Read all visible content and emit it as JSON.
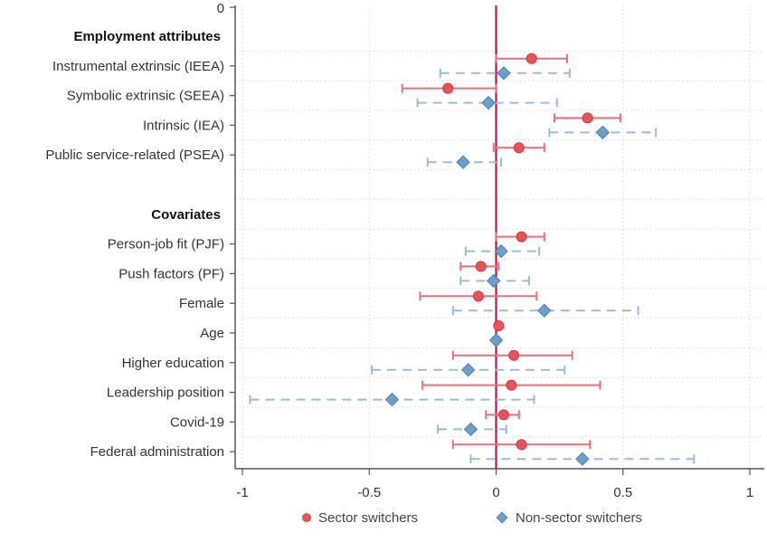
{
  "chart_data": {
    "type": "scatter",
    "subtype": "coefficient-plot",
    "title": "",
    "xlabel": "",
    "ylabel": "",
    "xlim": [
      -1,
      1
    ],
    "xticks": [
      -1,
      -0.5,
      0,
      0.5,
      1
    ],
    "xtick_labels": [
      "-1",
      "-0.5",
      "0",
      "0.5",
      "1"
    ],
    "reference_line": 0,
    "top_label": "0",
    "grid": true,
    "legend_position": "bottom",
    "colors": {
      "sector": "#e8535b",
      "non_sector": "#6b9fce",
      "refline": "#cc1144"
    },
    "rows": [
      {
        "kind": "header",
        "label": "Employment attributes"
      },
      {
        "kind": "var",
        "label": "Instrumental extrinsic (IEEA)"
      },
      {
        "kind": "var",
        "label": "Symbolic extrinsic (SEEA)"
      },
      {
        "kind": "var",
        "label": "Intrinsic (IEA)"
      },
      {
        "kind": "var",
        "label": "Public service-related (PSEA)"
      },
      {
        "kind": "blank",
        "label": ""
      },
      {
        "kind": "header",
        "label": "Covariates"
      },
      {
        "kind": "var",
        "label": "Person-job fit (PJF)"
      },
      {
        "kind": "var",
        "label": "Push factors (PF)"
      },
      {
        "kind": "var",
        "label": "Female"
      },
      {
        "kind": "var",
        "label": "Age"
      },
      {
        "kind": "var",
        "label": "Higher education"
      },
      {
        "kind": "var",
        "label": "Leadership position"
      },
      {
        "kind": "var",
        "label": "Covid-19"
      },
      {
        "kind": "var",
        "label": "Federal administration"
      }
    ],
    "series": [
      {
        "name": "Sector switchers",
        "marker": "circle",
        "line": "solid",
        "points": [
          {
            "var": "Instrumental extrinsic (IEEA)",
            "estimate": 0.14,
            "ci": [
              0.0,
              0.28
            ]
          },
          {
            "var": "Symbolic extrinsic (SEEA)",
            "estimate": -0.19,
            "ci": [
              -0.37,
              0.0
            ]
          },
          {
            "var": "Intrinsic (IEA)",
            "estimate": 0.36,
            "ci": [
              0.23,
              0.49
            ]
          },
          {
            "var": "Public service-related (PSEA)",
            "estimate": 0.09,
            "ci": [
              -0.01,
              0.19
            ]
          },
          {
            "var": "Person-job fit (PJF)",
            "estimate": 0.1,
            "ci": [
              0.0,
              0.19
            ]
          },
          {
            "var": "Push factors (PF)",
            "estimate": -0.06,
            "ci": [
              -0.14,
              0.01
            ]
          },
          {
            "var": "Female",
            "estimate": -0.07,
            "ci": [
              -0.3,
              0.16
            ]
          },
          {
            "var": "Age",
            "estimate": 0.01,
            "ci": [
              0.0,
              0.02
            ]
          },
          {
            "var": "Higher education",
            "estimate": 0.07,
            "ci": [
              -0.17,
              0.3
            ]
          },
          {
            "var": "Leadership position",
            "estimate": 0.06,
            "ci": [
              -0.29,
              0.41
            ]
          },
          {
            "var": "Covid-19",
            "estimate": 0.03,
            "ci": [
              -0.04,
              0.09
            ]
          },
          {
            "var": "Federal administration",
            "estimate": 0.1,
            "ci": [
              -0.17,
              0.37
            ]
          }
        ]
      },
      {
        "name": "Non-sector switchers",
        "marker": "diamond",
        "line": "dashed",
        "points": [
          {
            "var": "Instrumental extrinsic (IEEA)",
            "estimate": 0.03,
            "ci": [
              -0.22,
              0.29
            ]
          },
          {
            "var": "Symbolic extrinsic (SEEA)",
            "estimate": -0.03,
            "ci": [
              -0.31,
              0.24
            ]
          },
          {
            "var": "Intrinsic (IEA)",
            "estimate": 0.42,
            "ci": [
              0.21,
              0.63
            ]
          },
          {
            "var": "Public service-related (PSEA)",
            "estimate": -0.13,
            "ci": [
              -0.27,
              0.02
            ]
          },
          {
            "var": "Person-job fit (PJF)",
            "estimate": 0.02,
            "ci": [
              -0.12,
              0.17
            ]
          },
          {
            "var": "Push factors (PF)",
            "estimate": -0.01,
            "ci": [
              -0.14,
              0.13
            ]
          },
          {
            "var": "Female",
            "estimate": 0.19,
            "ci": [
              -0.17,
              0.56
            ]
          },
          {
            "var": "Age",
            "estimate": 0.0,
            "ci": [
              -0.01,
              0.01
            ]
          },
          {
            "var": "Higher education",
            "estimate": -0.11,
            "ci": [
              -0.49,
              0.27
            ]
          },
          {
            "var": "Leadership position",
            "estimate": -0.41,
            "ci": [
              -0.97,
              0.15
            ]
          },
          {
            "var": "Covid-19",
            "estimate": -0.1,
            "ci": [
              -0.23,
              0.04
            ]
          },
          {
            "var": "Federal administration",
            "estimate": 0.34,
            "ci": [
              -0.1,
              0.78
            ]
          }
        ]
      }
    ]
  }
}
